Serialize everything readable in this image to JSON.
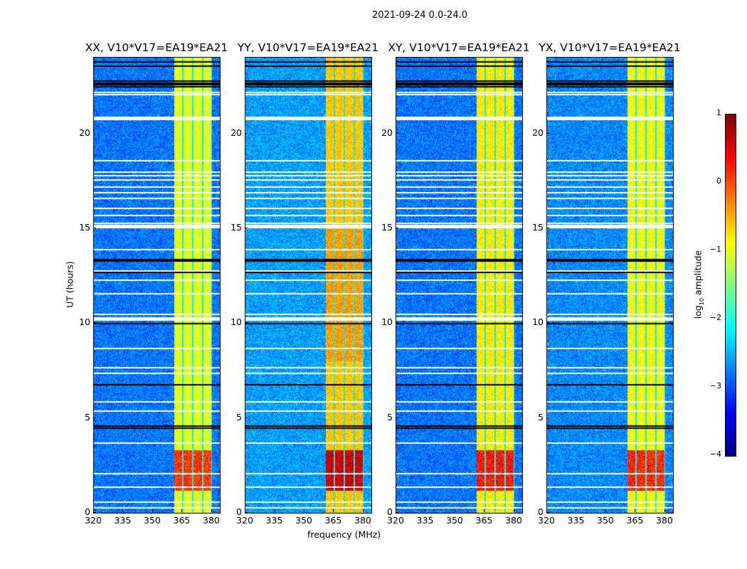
{
  "chart_data": {
    "type": "heatmap",
    "title": "2021-09-24 0.0-24.0",
    "xlabel": "frequency (MHz)",
    "ylabel": "UT (hours)",
    "xlim": [
      320,
      384
    ],
    "ylim": [
      0,
      24
    ],
    "xticks": [
      "320",
      "335",
      "350",
      "365",
      "380"
    ],
    "xtick_values": [
      320,
      335,
      350,
      365,
      380
    ],
    "yticks": [
      "0",
      "5",
      "10",
      "15",
      "20"
    ],
    "ytick_values": [
      0,
      5,
      10,
      15,
      20
    ],
    "panels": [
      {
        "title": "XX, V10*V17=EA19*EA21",
        "band_level": -1.0,
        "burst_level": 0.1,
        "bg_level": -2.8
      },
      {
        "title": "YY, V10*V17=EA19*EA21",
        "band_level": -0.6,
        "burst_level": 0.6,
        "bg_level": -2.6
      },
      {
        "title": "XY, V10*V17=EA19*EA21",
        "band_level": -0.8,
        "burst_level": 0.3,
        "bg_level": -2.8
      },
      {
        "title": "YX, V10*V17=EA19*EA21",
        "band_level": -0.9,
        "burst_level": 0.2,
        "bg_level": -2.7
      }
    ],
    "bright_band_mhz": [
      360.5,
      380
    ],
    "channel_gaps_mhz": [
      365,
      370,
      375,
      380
    ],
    "burst_hours": [
      1.2,
      3.3
    ],
    "flagged_white_hours": [
      22.2,
      22.1,
      20.9,
      18.6,
      18.0,
      17.8,
      17.6,
      17.2,
      16.9,
      16.6,
      16.1,
      15.7,
      15.3,
      15.2,
      13.9,
      12.8,
      12.3,
      11.6,
      10.5,
      10.3,
      8.7,
      7.7,
      7.4,
      5.9,
      5.4,
      4.5,
      3.7,
      2.1,
      1.4,
      0.6,
      0.3
    ],
    "flagged_black_hours": [
      23.8,
      23.6,
      22.8,
      22.7,
      22.6,
      22.5,
      13.4,
      13.3,
      12.7,
      10.0,
      6.8,
      4.6,
      4.5
    ],
    "colorbar": {
      "label": "log10 amplitude",
      "label_main": "log",
      "label_sub": "10",
      "label_rest": " amplitude",
      "range": [
        -4,
        1
      ],
      "ticks": [
        "1",
        "0",
        "−1",
        "−2",
        "−3",
        "−4"
      ],
      "tick_values": [
        1,
        0,
        -1,
        -2,
        -3,
        -4
      ],
      "colormap": "jet"
    }
  }
}
